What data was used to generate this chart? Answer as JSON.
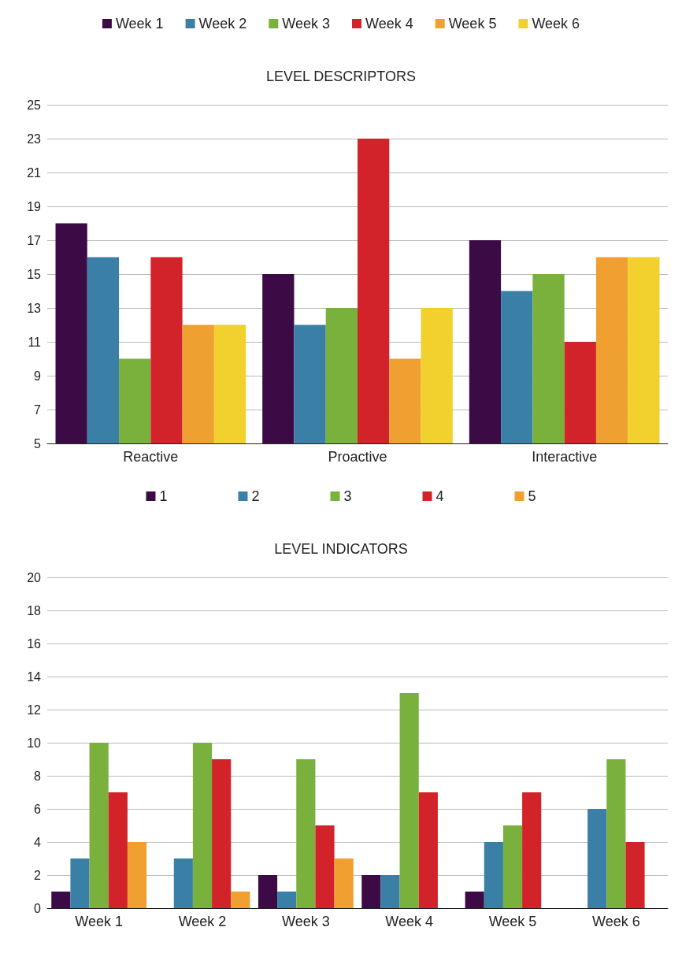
{
  "chart_data": [
    {
      "type": "bar",
      "title": "LEVEL DESCRIPTORS",
      "categories": [
        "Reactive",
        "Proactive",
        "Interactive"
      ],
      "series": [
        {
          "name": "Week 1",
          "color": "#3c0b45",
          "values": [
            18,
            15,
            17
          ]
        },
        {
          "name": "Week 2",
          "color": "#3a80a6",
          "values": [
            16,
            12,
            14
          ]
        },
        {
          "name": "Week 3",
          "color": "#7ab13c",
          "values": [
            10,
            13,
            15
          ]
        },
        {
          "name": "Week 4",
          "color": "#d2232a",
          "values": [
            16,
            23,
            11
          ]
        },
        {
          "name": "Week 5",
          "color": "#f0a030",
          "values": [
            12,
            10,
            16
          ]
        },
        {
          "name": "Week 6",
          "color": "#f2d02d",
          "values": [
            12,
            13,
            16
          ]
        }
      ],
      "ylim": [
        5,
        25
      ],
      "yticks": [
        5,
        7,
        9,
        11,
        13,
        15,
        17,
        19,
        21,
        23,
        25
      ],
      "grid": "y",
      "legend": "top"
    },
    {
      "type": "bar",
      "title": "LEVEL INDICATORS",
      "categories": [
        "Week 1",
        "Week 2",
        "Week 3",
        "Week 4",
        "Week 5",
        "Week 6"
      ],
      "series": [
        {
          "name": "1",
          "color": "#3c0b45",
          "values": [
            1,
            0,
            2,
            2,
            1,
            0
          ]
        },
        {
          "name": "2",
          "color": "#3a80a6",
          "values": [
            3,
            3,
            1,
            2,
            4,
            6
          ]
        },
        {
          "name": "3",
          "color": "#7ab13c",
          "values": [
            10,
            10,
            9,
            13,
            5,
            9
          ]
        },
        {
          "name": "4",
          "color": "#d2232a",
          "values": [
            7,
            9,
            5,
            7,
            7,
            4
          ]
        },
        {
          "name": "5",
          "color": "#f0a030",
          "values": [
            4,
            1,
            3,
            0,
            0,
            0
          ]
        }
      ],
      "ylim": [
        0,
        20
      ],
      "yticks": [
        0,
        2,
        4,
        6,
        8,
        10,
        12,
        14,
        16,
        18,
        20
      ],
      "grid": "y",
      "legend": "top"
    }
  ]
}
